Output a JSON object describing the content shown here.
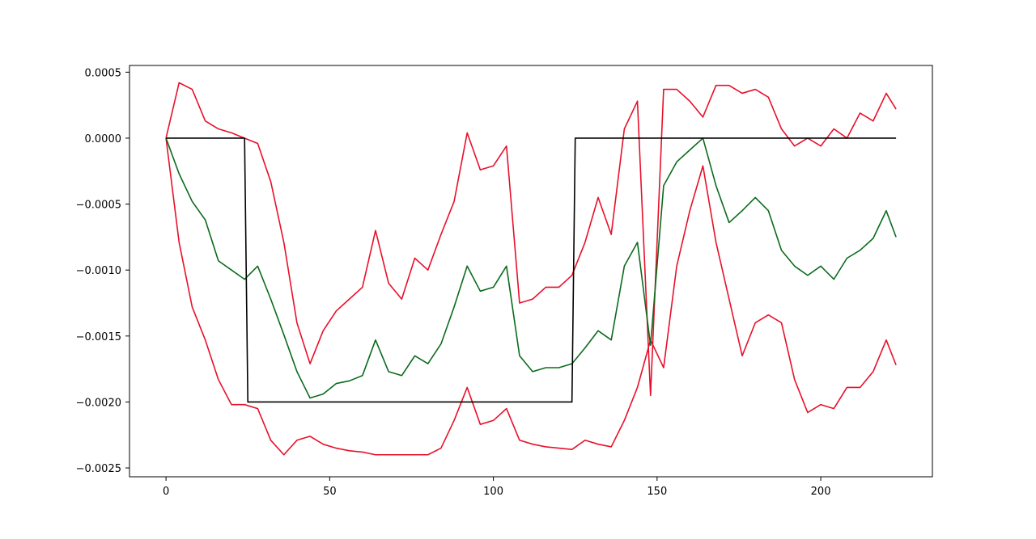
{
  "chart_data": {
    "type": "line",
    "x": [
      0,
      4,
      8,
      12,
      16,
      20,
      24,
      28,
      32,
      36,
      40,
      44,
      48,
      52,
      56,
      60,
      64,
      68,
      72,
      76,
      80,
      84,
      88,
      92,
      96,
      100,
      104,
      108,
      112,
      116,
      120,
      124,
      128,
      132,
      136,
      140,
      144,
      148,
      152,
      156,
      160,
      164,
      168,
      172,
      176,
      180,
      184,
      188,
      192,
      196,
      200,
      204,
      208,
      212,
      216,
      220,
      223
    ],
    "xlim": [
      -11.15,
      234.1
    ],
    "xticks": [
      0,
      50,
      100,
      150,
      200
    ],
    "ylim": [
      -0.002567,
      0.000551
    ],
    "yticks": [
      {
        "value": 0.0005,
        "label": "0.0005"
      },
      {
        "value": 0,
        "label": "0.0000"
      },
      {
        "value": -0.0005,
        "label": "−0.0005"
      },
      {
        "value": -0.001,
        "label": "−0.0010"
      },
      {
        "value": -0.0015,
        "label": "−0.0015"
      },
      {
        "value": -0.002,
        "label": "−0.0020"
      },
      {
        "value": -0.0025,
        "label": "−0.0025"
      }
    ],
    "series": [
      {
        "color": "#e8102a",
        "values": [
          0,
          0.00042,
          0.00037,
          0.00013,
          7e-05,
          4e-05,
          0,
          -4e-05,
          -0.00033,
          -0.00079,
          -0.0014,
          -0.00171,
          -0.00146,
          -0.00131,
          -0.00122,
          -0.00113,
          -0.0007,
          -0.0011,
          -0.00122,
          -0.00091,
          -0.001,
          -0.00073,
          -0.00048,
          4e-05,
          -0.00024,
          -0.00021,
          -6e-05,
          -0.00125,
          -0.00122,
          -0.00113,
          -0.00113,
          -0.00104,
          -0.00079,
          -0.00045,
          -0.00073,
          7e-05,
          0.00028,
          -0.00195,
          0.00037,
          0.00037,
          0.00028,
          0.00016,
          0.0004,
          0.0004,
          0.00034,
          0.00037,
          0.00031,
          7e-05,
          -6e-05,
          0,
          -6e-05,
          7e-05,
          0,
          0.00019,
          0.00013,
          0.00034,
          0.00022
        ]
      },
      {
        "color": "#e8102a",
        "values": [
          0,
          -0.00079,
          -0.00128,
          -0.00153,
          -0.00183,
          -0.00202,
          -0.00202,
          -0.00205,
          -0.00229,
          -0.0024,
          -0.00229,
          -0.00226,
          -0.00232,
          -0.00235,
          -0.00237,
          -0.00238,
          -0.0024,
          -0.0024,
          -0.0024,
          -0.0024,
          -0.0024,
          -0.00235,
          -0.00214,
          -0.00189,
          -0.00217,
          -0.00214,
          -0.00205,
          -0.00229,
          -0.00232,
          -0.00234,
          -0.00235,
          -0.00236,
          -0.00229,
          -0.00232,
          -0.00234,
          -0.00214,
          -0.00189,
          -0.00153,
          -0.00174,
          -0.00097,
          -0.00055,
          -0.00021,
          -0.00079,
          -0.00122,
          -0.00165,
          -0.0014,
          -0.00134,
          -0.0014,
          -0.00183,
          -0.00208,
          -0.00202,
          -0.00205,
          -0.00189,
          -0.00189,
          -0.00177,
          -0.00153,
          -0.00172
        ]
      },
      {
        "color": "#0b6b1c",
        "values": [
          0,
          -0.00027,
          -0.00048,
          -0.00062,
          -0.00093,
          -0.001,
          -0.00107,
          -0.00097,
          -0.00122,
          -0.00149,
          -0.00177,
          -0.00197,
          -0.00194,
          -0.00186,
          -0.00184,
          -0.0018,
          -0.00153,
          -0.00177,
          -0.0018,
          -0.00165,
          -0.00171,
          -0.00156,
          -0.00128,
          -0.00097,
          -0.00116,
          -0.00113,
          -0.00097,
          -0.00165,
          -0.00177,
          -0.00174,
          -0.00174,
          -0.00171,
          -0.00159,
          -0.00146,
          -0.00153,
          -0.00097,
          -0.00079,
          -0.00157,
          -0.00036,
          -0.00018,
          -9e-05,
          0,
          -0.00036,
          -0.00064,
          -0.00055,
          -0.00045,
          -0.00055,
          -0.00085,
          -0.00097,
          -0.00104,
          -0.00097,
          -0.00107,
          -0.00091,
          -0.00085,
          -0.00076,
          -0.00055,
          -0.00075
        ]
      },
      {
        "color": "#000000",
        "x": [
          0,
          24,
          25,
          124,
          125,
          223
        ],
        "values": [
          0,
          0,
          -0.002,
          -0.002,
          0,
          0
        ]
      }
    ]
  }
}
